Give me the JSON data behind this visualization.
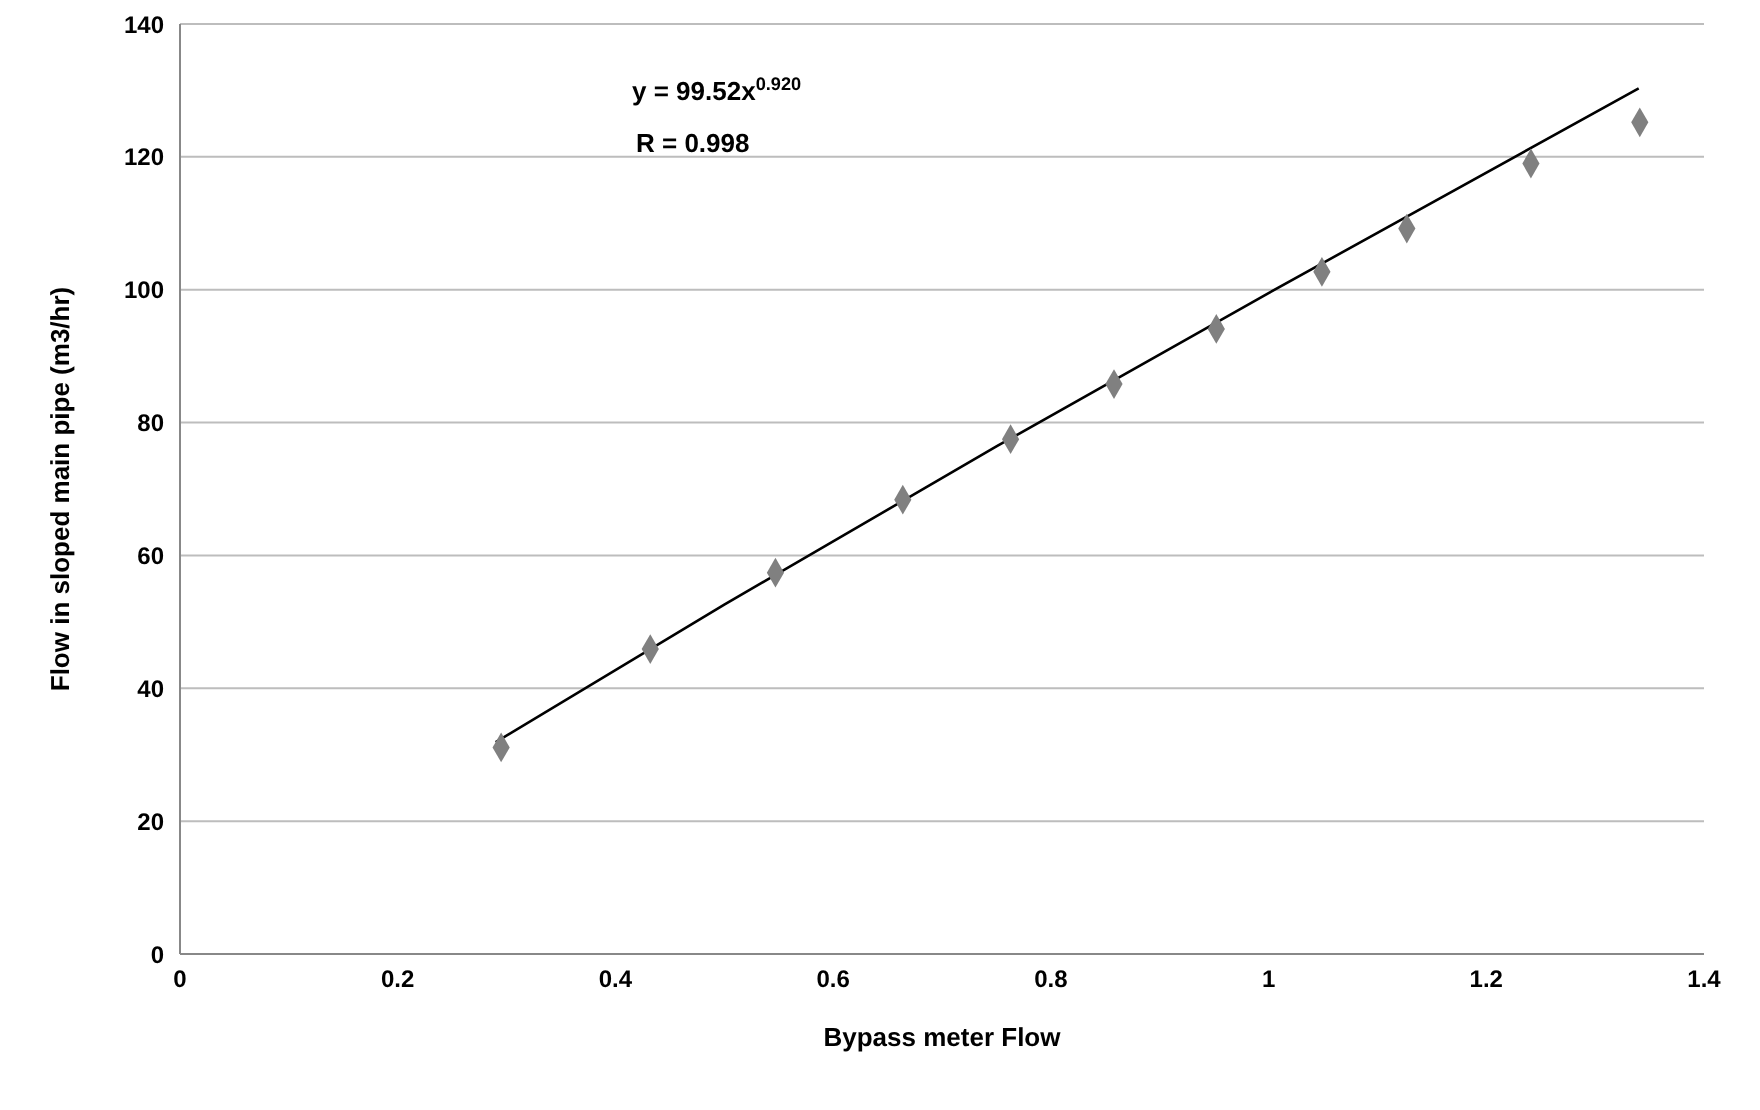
{
  "chart_data": {
    "type": "scatter",
    "xlabel": "Bypass meter Flow",
    "ylabel": "Flow in sloped main pipe (m3/hr)",
    "x": [
      0.295,
      0.432,
      0.547,
      0.664,
      0.763,
      0.858,
      0.952,
      1.049,
      1.127,
      1.241,
      1.341
    ],
    "series": [
      {
        "color": "#808080",
        "marker": "diamond",
        "values": [
          31.1,
          45.9,
          57.4,
          68.4,
          77.5,
          85.8,
          94.1,
          102.7,
          109.2,
          119.0,
          125.2
        ]
      },
      {
        "type": "line",
        "color": "#000000",
        "marker": "none",
        "x": [
          0.29,
          0.5,
          0.75,
          1.0,
          1.34
        ],
        "values": [
          31.9,
          52.6,
          76.4,
          99.5,
          130.3
        ]
      }
    ],
    "xlim": [
      0,
      1.4
    ],
    "xticks": [
      0,
      0.2,
      0.4,
      0.6,
      0.8,
      1,
      1.2,
      1.4
    ],
    "ylim": [
      0,
      140
    ],
    "yticks": [
      0,
      20,
      40,
      60,
      80,
      100,
      120,
      140
    ],
    "grid": "y",
    "annotations": [
      "y = 99.52x$^{0.920}$",
      "R = 0.998"
    ]
  }
}
